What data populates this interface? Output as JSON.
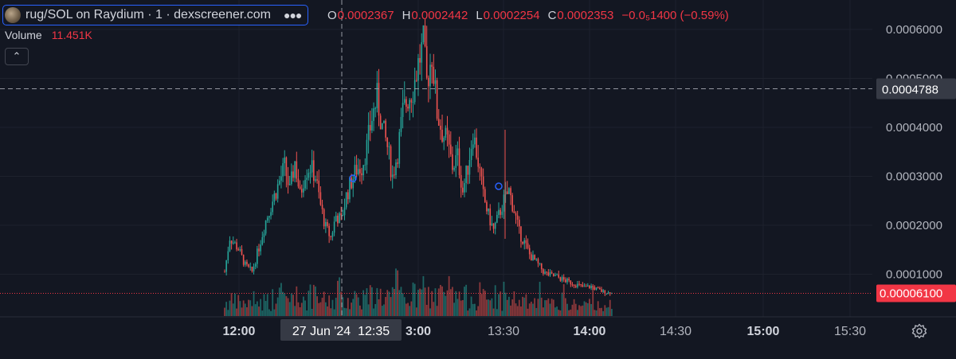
{
  "legend": {
    "title": "rug/SOL on Raydium · 1 · dexscreener.com",
    "more_icon": "more-dots-icon",
    "ohlc": {
      "o_key": "O",
      "o_val": "0.0002367",
      "h_key": "H",
      "h_val": "0.0002442",
      "l_key": "L",
      "l_val": "0.0002254",
      "c_key": "C",
      "c_val": "0.0002353",
      "change": "−0.0₅1400 (−0.59%)"
    },
    "volume_label": "Volume",
    "volume_value": "11.451K",
    "collapse_icon": "chevron-up-icon"
  },
  "colors": {
    "background": "#131722",
    "up": "#26a69a",
    "down": "#ef5350",
    "grid": "#1e222d",
    "crosshair": "#9598a1",
    "last_price": "#f23645"
  },
  "chart_data": {
    "type": "candlestick",
    "y_ticks": [
      "0.0006000",
      "0.0005000",
      "0.0004000",
      "0.0003000",
      "0.0002000",
      "0.0001000"
    ],
    "x_ticks": [
      "12:00",
      "3:00",
      "13:30",
      "14:00",
      "14:30",
      "15:00",
      "15:30"
    ],
    "crosshair_price": "0.0004788",
    "crosshair_time": "27 Jun '24  12:35",
    "last_price": "0.00006100",
    "ylim": [
      6e-05,
      0.0006
    ],
    "close_path": [
      [
        0,
        0.000105
      ],
      [
        3,
        0.000175
      ],
      [
        8,
        0.000152
      ],
      [
        12,
        0.000118
      ],
      [
        16,
        0.000105
      ],
      [
        20,
        0.000155
      ],
      [
        24,
        0.00021
      ],
      [
        28,
        0.00025
      ],
      [
        32,
        0.00029
      ],
      [
        35,
        0.00032
      ],
      [
        38,
        0.00027
      ],
      [
        41,
        0.00033
      ],
      [
        44,
        0.00026
      ],
      [
        47,
        0.00031
      ],
      [
        50,
        0.00032
      ],
      [
        53,
        0.0003
      ],
      [
        56,
        0.00024
      ],
      [
        59,
        0.000195
      ],
      [
        62,
        0.000175
      ],
      [
        65,
        0.00022
      ],
      [
        68,
        0.00021
      ],
      [
        71,
        0.00026
      ],
      [
        74,
        0.00029
      ],
      [
        77,
        0.000315
      ],
      [
        80,
        0.00032
      ],
      [
        83,
        0.00036
      ],
      [
        86,
        0.00042
      ],
      [
        89,
        0.00046
      ],
      [
        92,
        0.0004
      ],
      [
        95,
        0.00036
      ],
      [
        98,
        0.0003
      ],
      [
        101,
        0.00035
      ],
      [
        104,
        0.00043
      ],
      [
        107,
        0.00046
      ],
      [
        110,
        0.00048
      ],
      [
        113,
        0.00053
      ],
      [
        116,
        0.00057
      ],
      [
        118,
        0.00049
      ],
      [
        121,
        0.00055
      ],
      [
        124,
        0.00043
      ],
      [
        127,
        0.00039
      ],
      [
        130,
        0.00037
      ],
      [
        133,
        0.00032
      ],
      [
        136,
        0.00034
      ],
      [
        139,
        0.00027
      ],
      [
        142,
        0.00032
      ],
      [
        145,
        0.00039
      ],
      [
        148,
        0.00033
      ],
      [
        151,
        0.00026
      ],
      [
        154,
        0.00022
      ],
      [
        157,
        0.00019
      ],
      [
        160,
        0.00022
      ],
      [
        163,
        0.00025
      ],
      [
        166,
        0.00027
      ],
      [
        169,
        0.00023
      ],
      [
        172,
        0.000185
      ],
      [
        175,
        0.000165
      ],
      [
        178,
        0.00014
      ],
      [
        181,
        0.000128
      ],
      [
        184,
        0.000115
      ],
      [
        187,
        0.000102
      ],
      [
        190,
        9.8e-05
      ],
      [
        194,
        9.5e-05
      ],
      [
        198,
        8.8e-05
      ],
      [
        202,
        8.3e-05
      ],
      [
        206,
        7.8e-05
      ],
      [
        210,
        7.3e-05
      ],
      [
        214,
        7.5e-05
      ],
      [
        218,
        6.8e-05
      ],
      [
        222,
        6.3e-05
      ],
      [
        226,
        6.1e-05
      ]
    ]
  }
}
